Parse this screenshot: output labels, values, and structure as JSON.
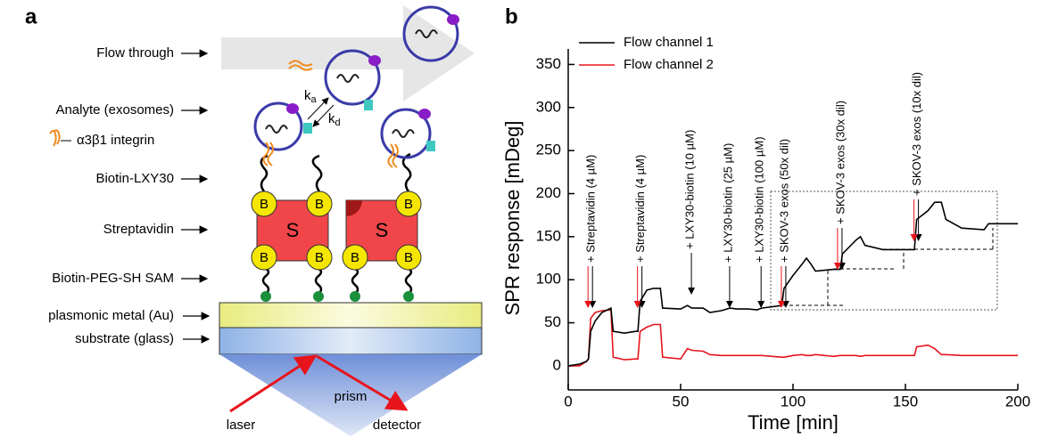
{
  "panel_a": {
    "panel_label": "a",
    "labels": [
      "Flow through",
      "Analyte (exosomes)",
      "α3β1 integrin",
      "Biotin-LXY30",
      "Streptavidin",
      "Biotin-PEG-SH SAM",
      "plasmonic metal (Au)",
      "substrate (glass)"
    ],
    "streptavidin_label": "S",
    "biotin_label": "B",
    "kinetics": [
      {
        "base": "k",
        "sub": "a"
      },
      {
        "base": "k",
        "sub": "d"
      }
    ],
    "prism": "prism",
    "laser": "laser",
    "detector": "detector"
  },
  "chart_data": {
    "type": "line",
    "panel_label": "b",
    "x_label": "Time [min]",
    "y_label": "SPR response [mDeg]",
    "xlim": [
      0,
      200
    ],
    "xticks": [
      0,
      50,
      100,
      150,
      200
    ],
    "ylim": [
      -28,
      368
    ],
    "yticks": [
      0,
      50,
      100,
      150,
      200,
      250,
      300,
      350
    ],
    "legend": "top-left",
    "x": [
      0,
      5,
      8,
      9,
      10,
      12,
      15,
      19,
      20,
      25,
      30,
      31,
      32,
      35,
      38,
      41,
      42,
      50,
      53,
      55,
      60,
      63,
      68,
      72,
      75,
      80,
      84,
      86,
      95,
      96,
      100,
      104,
      106,
      108,
      110,
      118,
      121,
      122,
      128,
      130,
      132,
      140,
      154,
      155,
      160,
      163,
      166,
      168,
      175,
      185,
      187,
      190,
      200
    ],
    "series": [
      {
        "name": "Flow channel 1",
        "color": "#000000",
        "values": [
          0,
          2,
          5,
          8,
          40,
          52,
          62,
          67,
          40,
          38,
          40,
          40,
          75,
          88,
          90,
          90,
          67,
          66,
          70,
          67,
          67,
          62,
          64,
          67,
          66,
          66,
          65,
          67,
          70,
          90,
          105,
          118,
          125,
          118,
          110,
          112,
          112,
          130,
          146,
          150,
          140,
          135,
          135,
          170,
          180,
          190,
          190,
          170,
          160,
          158,
          165,
          165,
          165
        ]
      },
      {
        "name": "Flow channel 2",
        "color": "#e8141c",
        "values": [
          0,
          0,
          5,
          8,
          55,
          62,
          64,
          65,
          10,
          7,
          8,
          8,
          40,
          45,
          48,
          48,
          10,
          8,
          20,
          18,
          17,
          13,
          12,
          12,
          12,
          12,
          12,
          12,
          10,
          10,
          12,
          13,
          12,
          12,
          13,
          11,
          12,
          12,
          12,
          11,
          12,
          12,
          12,
          22,
          24,
          20,
          13,
          13,
          12,
          12,
          12,
          12,
          12
        ]
      }
    ],
    "annotations": [
      {
        "text": "+ Streptavidin (4 µM)",
        "x": 10,
        "red_arrow": true
      },
      {
        "text": "+ Streptavidin (4 µM)",
        "x": 32,
        "red_arrow": true
      },
      {
        "text": "+ LXY30-biotin (10 µM)",
        "x": 54,
        "red_arrow": false
      },
      {
        "text": "+ LXY30-biotin (25 µM)",
        "x": 71,
        "red_arrow": false
      },
      {
        "text": "+ LXY30-biotin (100 µM)",
        "x": 85,
        "red_arrow": false
      },
      {
        "text": "+ SKOV-3 exos (50x dil)",
        "x": 96,
        "red_arrow": true
      },
      {
        "text": "+ SKOV-3 exos (30x dil)",
        "x": 121,
        "red_arrow": true
      },
      {
        "text": "+ SKOV-3 exos (10x dil)",
        "x": 155,
        "red_arrow": true
      }
    ]
  }
}
